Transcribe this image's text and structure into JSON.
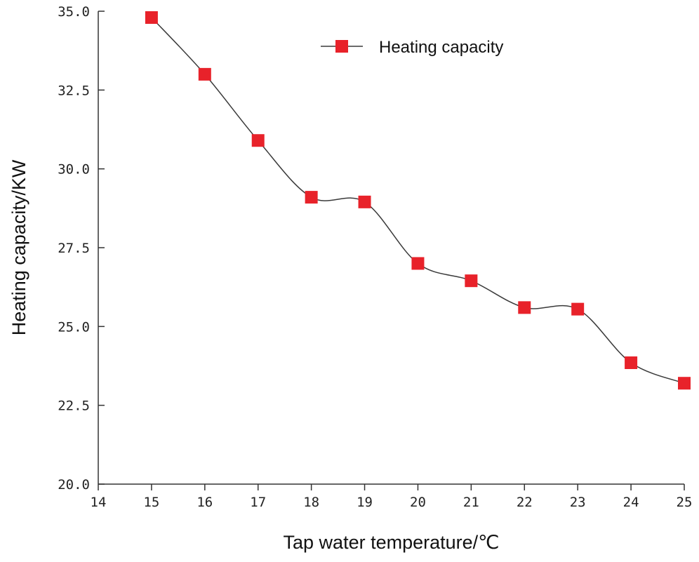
{
  "chart_data": {
    "type": "line",
    "title": "",
    "xlabel": "Tap water temperature/℃",
    "ylabel": "Heating capacity/KW",
    "xlim": [
      14,
      25
    ],
    "ylim": [
      20.0,
      35.0
    ],
    "x_ticks": [
      "14",
      "15",
      "16",
      "17",
      "18",
      "19",
      "20",
      "21",
      "22",
      "23",
      "24",
      "25"
    ],
    "y_ticks": [
      "20.0",
      "22.5",
      "25.0",
      "27.5",
      "30.0",
      "32.5",
      "35.0"
    ],
    "grid": false,
    "legend_position": "top-right",
    "series": [
      {
        "name": "Heating capacity",
        "color": "#e8222a",
        "line_color": "#3a3a3a",
        "marker": "square",
        "x": [
          15,
          16,
          17,
          18,
          19,
          20,
          21,
          22,
          23,
          24,
          25
        ],
        "values": [
          34.8,
          33.0,
          30.9,
          29.1,
          28.95,
          27.0,
          26.45,
          25.6,
          25.55,
          23.85,
          23.2
        ]
      }
    ]
  }
}
